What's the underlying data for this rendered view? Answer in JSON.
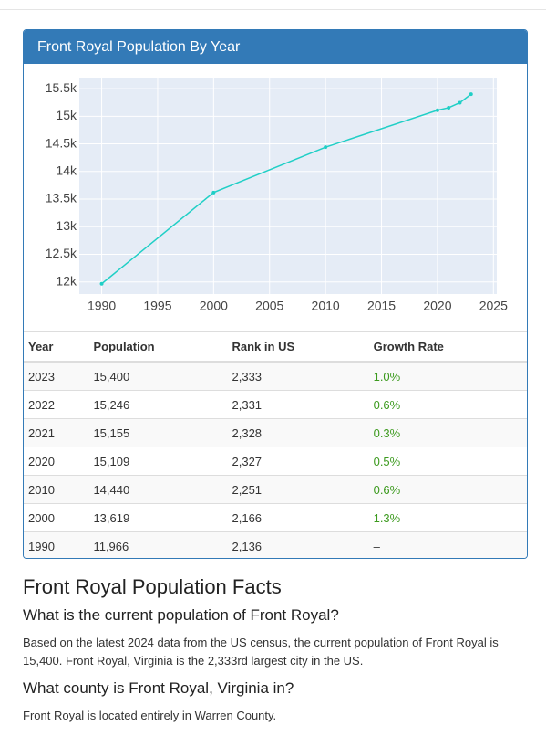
{
  "panel": {
    "title": "Front Royal Population By Year"
  },
  "chart_data": {
    "type": "line",
    "x": [
      1990,
      2000,
      2010,
      2020,
      2021,
      2022,
      2023
    ],
    "values": [
      11966,
      13619,
      14440,
      15109,
      15155,
      15246,
      15400
    ],
    "color": "#20cfc6",
    "xlim": [
      1988,
      2025.3
    ],
    "xticks": [
      1990,
      1995,
      2000,
      2005,
      2010,
      2015,
      2020,
      2025
    ],
    "ylim": [
      11780,
      15700
    ],
    "yticks": [
      {
        "value": 12000,
        "label": "12k"
      },
      {
        "value": 12500,
        "label": "12.5k"
      },
      {
        "value": 13000,
        "label": "13k"
      },
      {
        "value": 13500,
        "label": "13.5k"
      },
      {
        "value": 14000,
        "label": "14k"
      },
      {
        "value": 14500,
        "label": "14.5k"
      },
      {
        "value": 15000,
        "label": "15k"
      },
      {
        "value": 15500,
        "label": "15.5k"
      }
    ],
    "grid": true
  },
  "table": {
    "headers": [
      "Year",
      "Population",
      "Rank in US",
      "Growth Rate"
    ],
    "rows": [
      [
        "2023",
        "15,400",
        "2,333",
        "1.0%"
      ],
      [
        "2022",
        "15,246",
        "2,331",
        "0.6%"
      ],
      [
        "2021",
        "15,155",
        "2,328",
        "0.3%"
      ],
      [
        "2020",
        "15,109",
        "2,327",
        "0.5%"
      ],
      [
        "2010",
        "14,440",
        "2,251",
        "0.6%"
      ],
      [
        "2000",
        "13,619",
        "2,166",
        "1.3%"
      ],
      [
        "1990",
        "11,966",
        "2,136",
        "–"
      ]
    ]
  },
  "facts": {
    "title": "Front Royal Population Facts",
    "sections": [
      {
        "question": "What is the current population of Front Royal?",
        "answer": "Based on the latest 2024 data from the US census, the current population of Front Royal is 15,400. Front Royal, Virginia is the 2,333rd largest city in the US."
      },
      {
        "question": "What county is Front Royal, Virginia in?",
        "answer": "Front Royal is located entirely in Warren County."
      }
    ]
  }
}
